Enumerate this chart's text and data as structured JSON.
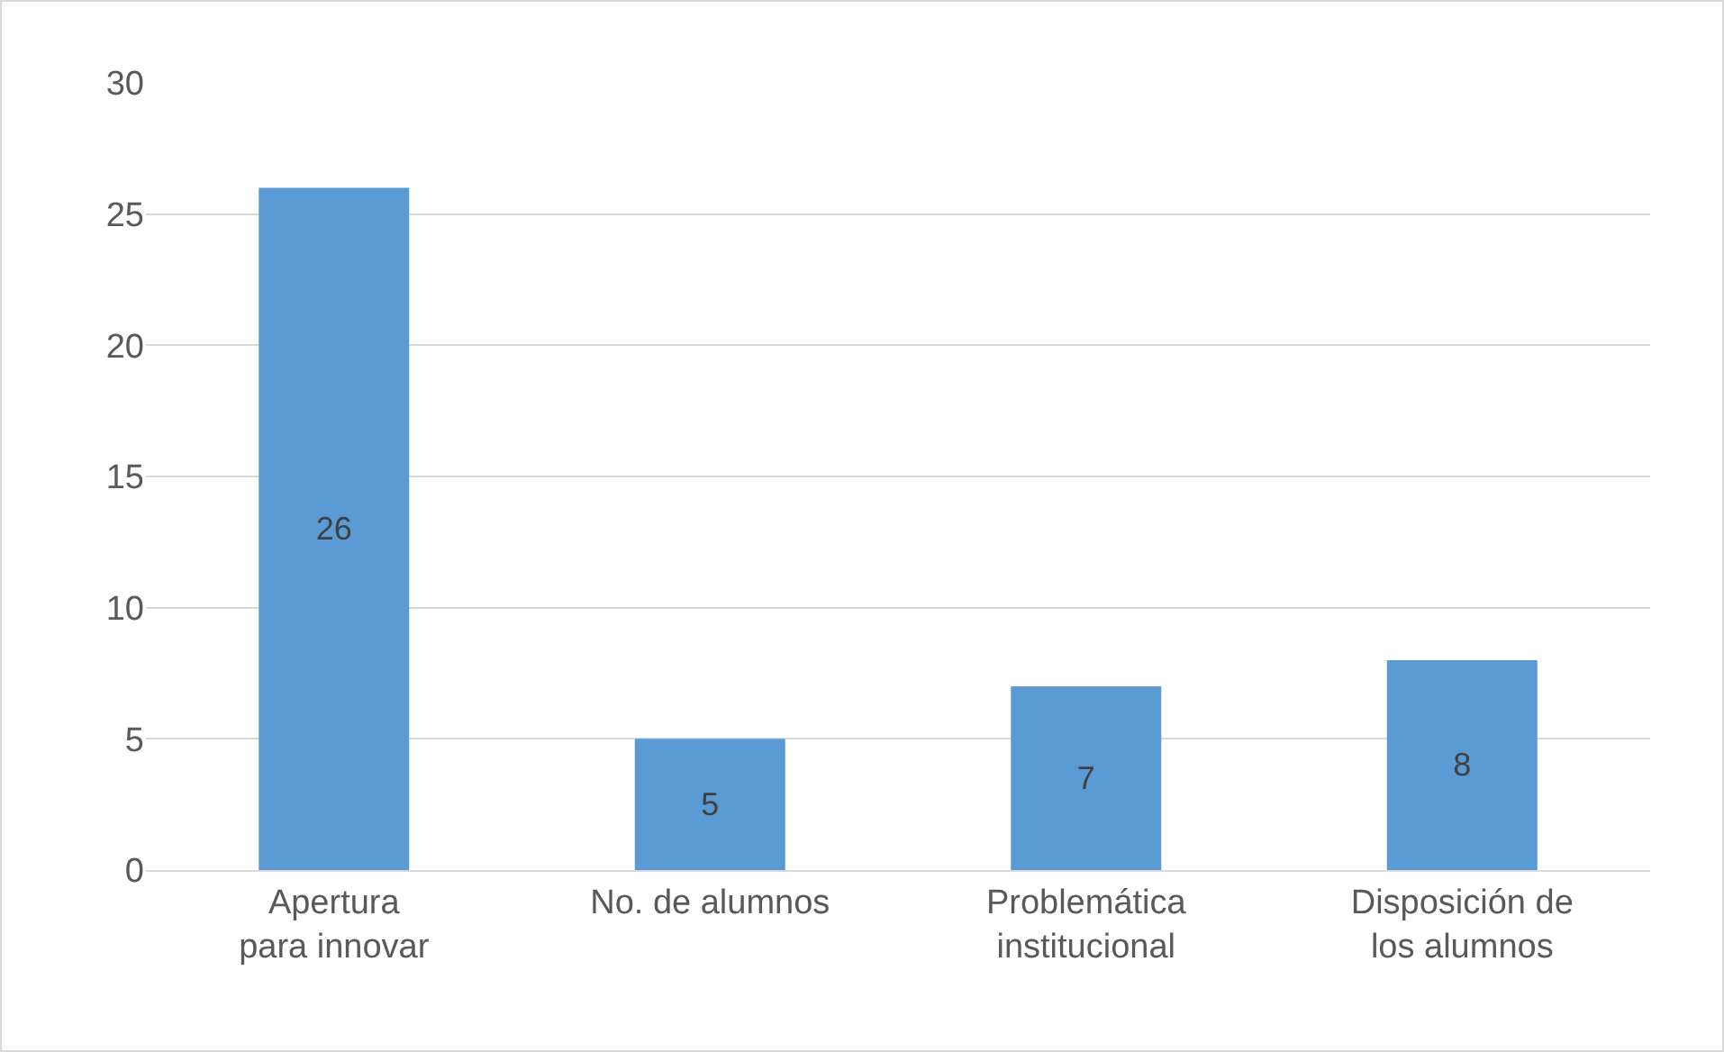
{
  "chart_data": {
    "type": "bar",
    "categories": [
      "Apertura para innovar",
      "No. de alumnos",
      "Problemática institucional",
      "Disposición de los alumnos"
    ],
    "values": [
      26,
      5,
      7,
      8
    ],
    "color": "#5b9bd5",
    "ylim": [
      0,
      30
    ],
    "yticks": [
      0,
      5,
      10,
      15,
      20,
      25,
      30
    ],
    "grid": "y",
    "data_labels": true
  }
}
